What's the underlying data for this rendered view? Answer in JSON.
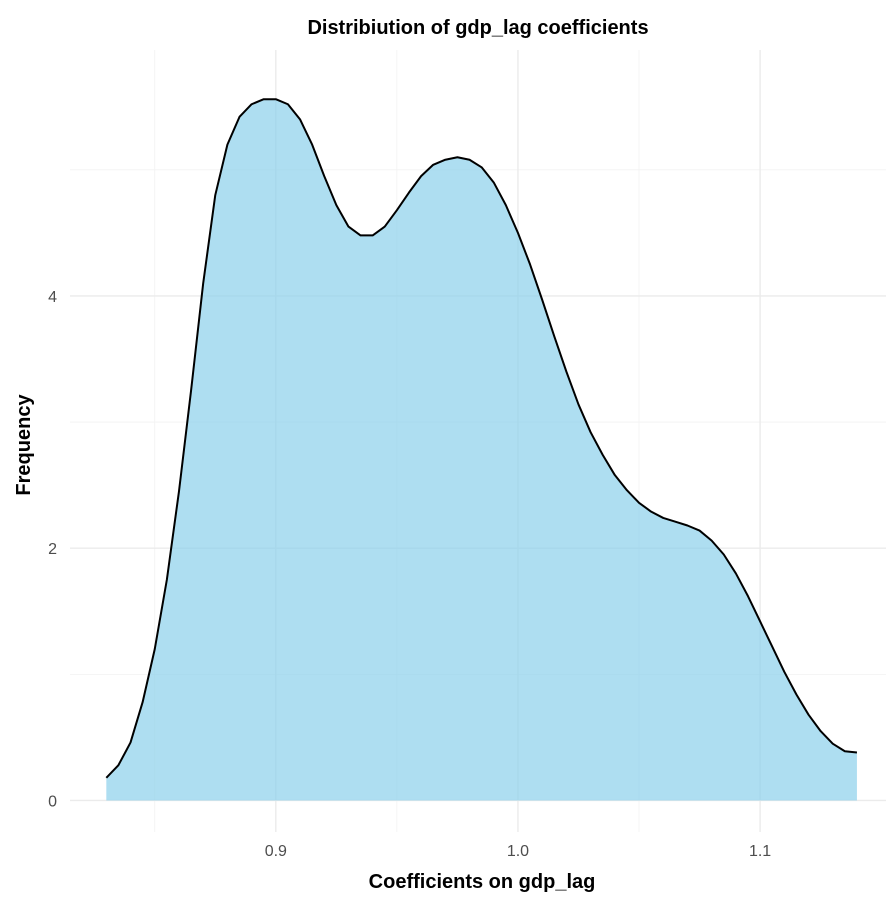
{
  "chart_data": {
    "type": "area",
    "title": "Distribiution of gdp_lag coefficients",
    "xlabel": "Coefficients on gdp_lag",
    "ylabel": "Frequency",
    "xlim": [
      0.815,
      1.152
    ],
    "ylim": [
      -0.25,
      5.95
    ],
    "x_ticks": [
      0.9,
      1.0,
      1.1
    ],
    "x_tick_labels": [
      "0.9",
      "1.0",
      "1.1"
    ],
    "x_minor_ticks": [
      0.85,
      0.95,
      1.05
    ],
    "y_ticks": [
      0,
      2,
      4
    ],
    "y_tick_labels": [
      "0",
      "2",
      "4"
    ],
    "y_minor_ticks": [
      1,
      3,
      5
    ],
    "grid": true,
    "legend": "none",
    "fill_color": "#87CEEB",
    "fill_opacity": 0.68,
    "line_color": "#000000",
    "series": [
      {
        "x": [
          0.83,
          0.835,
          0.84,
          0.845,
          0.85,
          0.855,
          0.86,
          0.865,
          0.87,
          0.875,
          0.88,
          0.885,
          0.89,
          0.895,
          0.9,
          0.905,
          0.91,
          0.915,
          0.92,
          0.925,
          0.93,
          0.935,
          0.94,
          0.945,
          0.95,
          0.955,
          0.96,
          0.965,
          0.97,
          0.975,
          0.98,
          0.985,
          0.99,
          0.995,
          1.0,
          1.005,
          1.01,
          1.015,
          1.02,
          1.025,
          1.03,
          1.035,
          1.04,
          1.045,
          1.05,
          1.055,
          1.06,
          1.065,
          1.07,
          1.075,
          1.08,
          1.085,
          1.09,
          1.095,
          1.1,
          1.105,
          1.11,
          1.115,
          1.12,
          1.125,
          1.13,
          1.135,
          1.14
        ],
        "y": [
          0.18,
          0.28,
          0.46,
          0.78,
          1.2,
          1.75,
          2.45,
          3.25,
          4.1,
          4.8,
          5.2,
          5.42,
          5.52,
          5.56,
          5.56,
          5.52,
          5.4,
          5.2,
          4.95,
          4.72,
          4.55,
          4.48,
          4.48,
          4.55,
          4.68,
          4.82,
          4.95,
          5.04,
          5.08,
          5.1,
          5.08,
          5.02,
          4.9,
          4.72,
          4.5,
          4.25,
          3.97,
          3.68,
          3.4,
          3.14,
          2.92,
          2.74,
          2.58,
          2.46,
          2.36,
          2.29,
          2.24,
          2.21,
          2.18,
          2.14,
          2.06,
          1.95,
          1.8,
          1.62,
          1.42,
          1.22,
          1.02,
          0.84,
          0.68,
          0.55,
          0.45,
          0.39,
          0.38
        ]
      }
    ]
  }
}
